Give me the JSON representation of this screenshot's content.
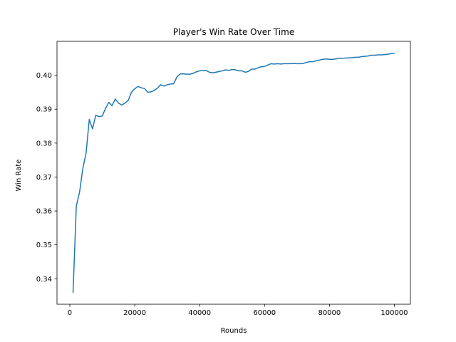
{
  "chart_data": {
    "type": "line",
    "title": "Player's Win Rate Over Time",
    "xlabel": "Rounds",
    "ylabel": "Win Rate",
    "xlim": [
      -3950,
      104950
    ],
    "ylim": [
      0.3325,
      0.41
    ],
    "xticks": [
      0,
      20000,
      40000,
      60000,
      80000,
      100000
    ],
    "yticks": [
      0.34,
      0.35,
      0.36,
      0.37,
      0.38,
      0.39,
      0.4
    ],
    "ytick_labels": [
      "0.34",
      "0.35",
      "0.36",
      "0.37",
      "0.38",
      "0.39",
      "0.40"
    ],
    "grid": false,
    "line_color": "#1f77b4",
    "series": [
      {
        "x": [
          1000,
          2000,
          3000,
          4000,
          5000,
          6000,
          7000,
          8000,
          9000,
          10000,
          11000,
          12000,
          13000,
          14000,
          15000,
          16000,
          17000,
          18000,
          19000,
          20000,
          21000,
          22000,
          23000,
          24000,
          25000,
          26000,
          27000,
          28000,
          29000,
          30000,
          31000,
          32000,
          33000,
          34000,
          35000,
          36000,
          37000,
          38000,
          39000,
          40000,
          41000,
          42000,
          43000,
          44000,
          45000,
          46000,
          47000,
          48000,
          49000,
          50000,
          51000,
          52000,
          53000,
          54000,
          55000,
          56000,
          57000,
          58000,
          59000,
          60000,
          61000,
          62000,
          63000,
          64000,
          65000,
          66000,
          67000,
          68000,
          69000,
          70000,
          71000,
          72000,
          73000,
          74000,
          75000,
          76000,
          77000,
          78000,
          79000,
          80000,
          81000,
          82000,
          83000,
          84000,
          85000,
          86000,
          87000,
          88000,
          89000,
          90000,
          91000,
          92000,
          93000,
          94000,
          95000,
          96000,
          97000,
          98000,
          99000,
          100000
        ],
        "values": [
          0.336,
          0.3615,
          0.3655,
          0.3725,
          0.377,
          0.387,
          0.3842,
          0.3882,
          0.3878,
          0.388,
          0.3902,
          0.392,
          0.391,
          0.393,
          0.3918,
          0.3912,
          0.3918,
          0.3926,
          0.395,
          0.396,
          0.3967,
          0.3963,
          0.3961,
          0.395,
          0.3951,
          0.3955,
          0.3962,
          0.3972,
          0.3968,
          0.3972,
          0.3974,
          0.3975,
          0.3995,
          0.4004,
          0.4004,
          0.4003,
          0.4003,
          0.4006,
          0.401,
          0.4013,
          0.4014,
          0.4014,
          0.4009,
          0.4007,
          0.4009,
          0.4011,
          0.4013,
          0.4016,
          0.4014,
          0.4017,
          0.4016,
          0.4013,
          0.4013,
          0.4009,
          0.4011,
          0.4018,
          0.4018,
          0.4022,
          0.4025,
          0.4026,
          0.403,
          0.4034,
          0.4033,
          0.4034,
          0.4033,
          0.4034,
          0.4034,
          0.4034,
          0.4035,
          0.4034,
          0.4034,
          0.4035,
          0.4038,
          0.404,
          0.404,
          0.4043,
          0.4045,
          0.4047,
          0.4048,
          0.4047,
          0.4047,
          0.4048,
          0.405,
          0.405,
          0.4051,
          0.4051,
          0.4052,
          0.4053,
          0.4053,
          0.4055,
          0.4056,
          0.4057,
          0.4059,
          0.4059,
          0.406,
          0.406,
          0.4061,
          0.4062,
          0.4064,
          0.4065
        ]
      }
    ]
  }
}
